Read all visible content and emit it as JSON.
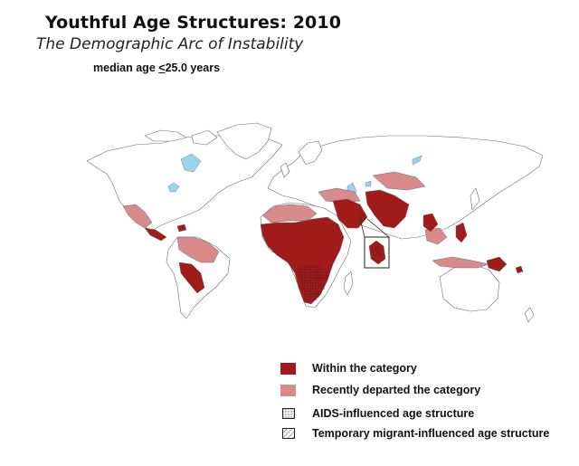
{
  "header": {
    "title": "Youthful Age Structures: 2010",
    "subtitle": "The Demographic Arc of Instability",
    "criterion_prefix": "median age ",
    "criterion_symbol": "<",
    "criterion_value": "25.0 years"
  },
  "colors": {
    "within": "#a11b1b",
    "departed": "#d98a8a",
    "land": "#ffffff",
    "water": "#9ad4ea",
    "outline": "#6d6d6d"
  },
  "legend": {
    "items": [
      {
        "label": "Within the category",
        "swatch": "solid",
        "color": "#a11b1b"
      },
      {
        "label": "Recently departed the category",
        "swatch": "solid",
        "color": "#d98a8a"
      },
      {
        "label": "AIDS-influenced age structure",
        "swatch": "dots-pattern"
      },
      {
        "label": "Temporary migrant-influenced age structure",
        "swatch": "hatch-pattern"
      }
    ]
  }
}
